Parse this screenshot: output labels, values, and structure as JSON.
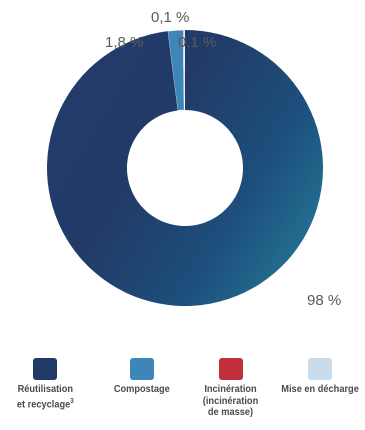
{
  "chart_data": {
    "type": "pie",
    "donut": true,
    "title": "",
    "categories": [
      "Réutilisation et recyclage",
      "Compostage",
      "Incinération (incinération de masse)",
      "Mise en décharge"
    ],
    "values": [
      98,
      1.8,
      0.1,
      0.1
    ],
    "value_labels": [
      "98 %",
      "1,8 %",
      "0,1 %",
      "0,1 %"
    ],
    "colors": [
      "#1f3a66",
      "#3f86b8",
      "#c0303a",
      "#c8dcec"
    ],
    "legend_position": "bottom",
    "legend": [
      {
        "label": "Réutilisation\net recyclage",
        "sup": "3",
        "color": "#1f3a66"
      },
      {
        "label": "Compostage",
        "sup": "",
        "color": "#3f86b8"
      },
      {
        "label": "Incinération\n(incinération\nde masse)",
        "sup": "",
        "color": "#c0303a"
      },
      {
        "label": "Mise en décharge",
        "sup": "",
        "color": "#c8dcec"
      }
    ]
  }
}
